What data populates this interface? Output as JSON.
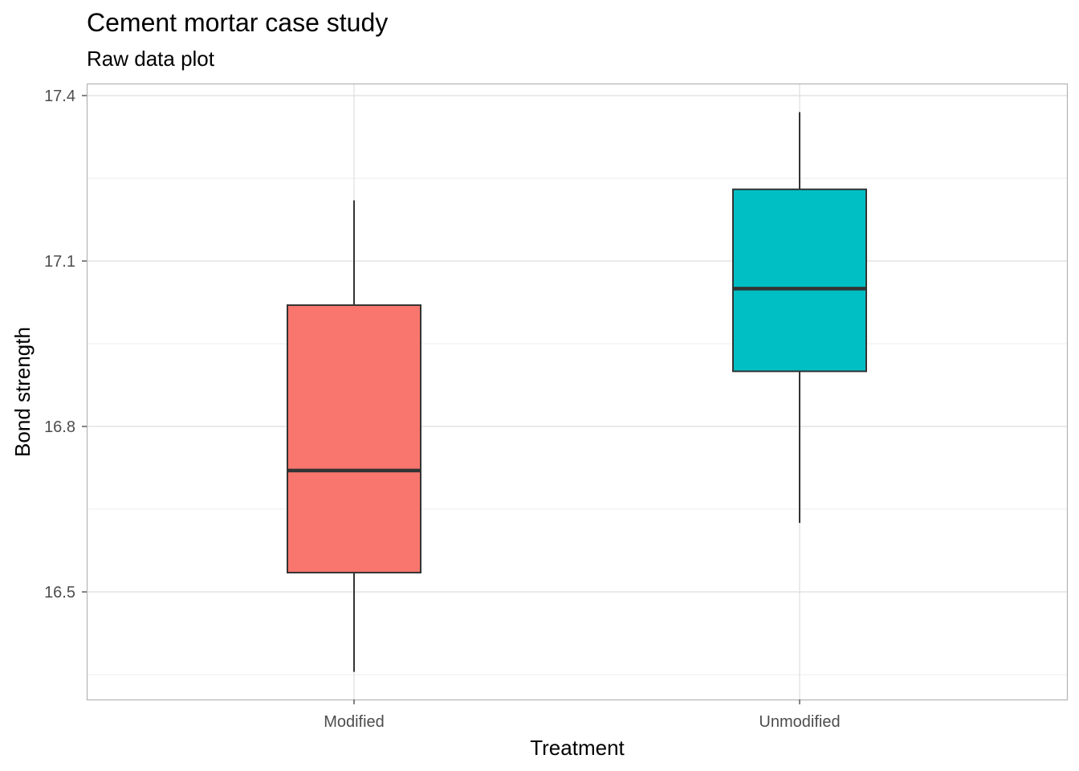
{
  "chart_data": {
    "type": "boxplot",
    "title": "Cement mortar case study",
    "subtitle": "Raw data plot",
    "xlabel": "Treatment",
    "ylabel": "Bond strength",
    "categories": [
      "Modified",
      "Unmodified"
    ],
    "boxes": [
      {
        "category": "Modified",
        "whisker_low": 16.355,
        "q1": 16.535,
        "median": 16.72,
        "q3": 17.02,
        "whisker_high": 17.21,
        "fill": "#F8766D"
      },
      {
        "category": "Unmodified",
        "whisker_low": 16.625,
        "q1": 16.9,
        "median": 17.05,
        "q3": 17.23,
        "whisker_high": 17.37,
        "fill": "#00BFC4"
      }
    ],
    "y_ticks": [
      16.5,
      16.8,
      17.1,
      17.4
    ],
    "y_tick_labels": [
      "16.5",
      "16.8",
      "17.1",
      "17.4"
    ],
    "ylim": [
      16.305,
      17.42
    ],
    "grid": true
  }
}
